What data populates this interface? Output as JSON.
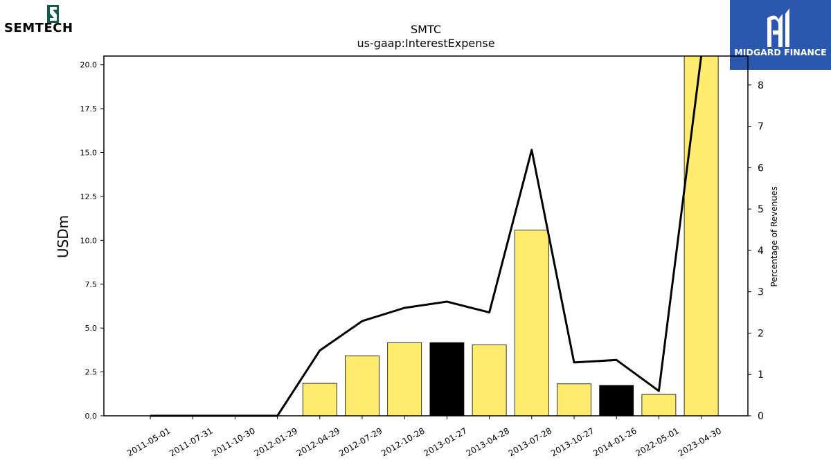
{
  "brand": {
    "company_wordmark": "SEMTECH",
    "company_logo_color": "#0f5c4c",
    "sponsor_name": "MIDGARD FINANCE",
    "sponsor_bg_color": "#2b58ad"
  },
  "chart_data": {
    "type": "bar",
    "title": "SMTC",
    "subtitle": "us-gaap:InterestExpense",
    "ylabel": "USDm",
    "y2label": "Percentage of Revenues",
    "ylim": [
      0,
      20.5
    ],
    "y2lim": [
      0,
      8.7
    ],
    "yticks": [
      "0.0",
      "2.5",
      "5.0",
      "7.5",
      "10.0",
      "12.5",
      "15.0",
      "17.5",
      "20.0"
    ],
    "y2ticks": [
      "0",
      "1",
      "2",
      "3",
      "4",
      "5",
      "6",
      "7",
      "8"
    ],
    "categories": [
      "2011-05-01",
      "2011-07-31",
      "2011-10-30",
      "2012-01-29",
      "2012-04-29",
      "2012-07-29",
      "2012-10-28",
      "2013-01-27",
      "2013-04-28",
      "2013-07-28",
      "2013-10-27",
      "2014-01-26",
      "2022-05-01",
      "2023-04-30"
    ],
    "series": [
      {
        "kind": "bar",
        "values": [
          0,
          0,
          0,
          0,
          1.85,
          3.42,
          4.17,
          4.17,
          4.05,
          10.58,
          1.82,
          1.73,
          1.22,
          20.5
        ],
        "colors": [
          "#ffec6e",
          "#ffec6e",
          "#ffec6e",
          "#ffec6e",
          "#ffec6e",
          "#ffec6e",
          "#ffec6e",
          "#000000",
          "#ffec6e",
          "#ffec6e",
          "#ffec6e",
          "#000000",
          "#ffec6e",
          "#ffec6e"
        ]
      },
      {
        "kind": "line",
        "axis": "right",
        "color": "#000000",
        "values": [
          0,
          0,
          0,
          0,
          1.58,
          2.29,
          2.61,
          2.76,
          2.5,
          6.43,
          1.29,
          1.35,
          0.6,
          8.7
        ]
      }
    ],
    "grid": false
  }
}
